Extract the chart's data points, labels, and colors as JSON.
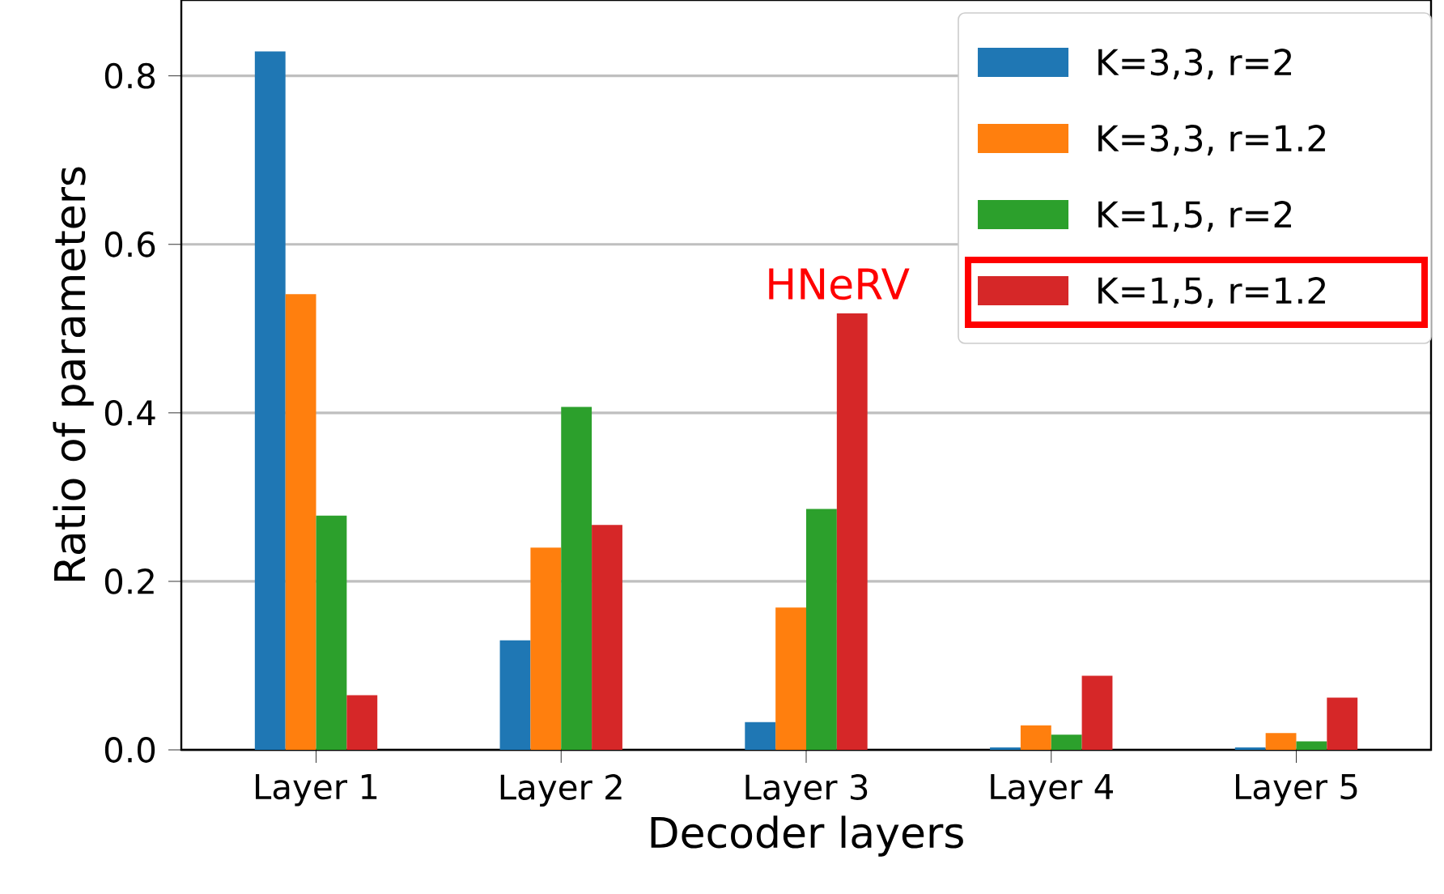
{
  "chart_data": {
    "type": "bar",
    "xlabel": "Decoder layers",
    "ylabel": "Ratio of parameters",
    "categories": [
      "Layer 1",
      "Layer 2",
      "Layer 3",
      "Layer 4",
      "Layer 5"
    ],
    "series": [
      {
        "name": "K=3,3, r=2",
        "color": "#1f77b4",
        "values": [
          0.829,
          0.13,
          0.033,
          0.003,
          0.003
        ]
      },
      {
        "name": "K=3,3, r=1.2",
        "color": "#ff7f0e",
        "values": [
          0.541,
          0.24,
          0.169,
          0.029,
          0.02
        ]
      },
      {
        "name": "K=1,5, r=2",
        "color": "#2ca02c",
        "values": [
          0.278,
          0.407,
          0.286,
          0.018,
          0.01
        ]
      },
      {
        "name": "K=1,5, r=1.2",
        "color": "#d62728",
        "values": [
          0.065,
          0.267,
          0.518,
          0.088,
          0.062
        ]
      }
    ],
    "ylim": [
      0,
      0.89
    ],
    "yticks": [
      {
        "value": 0,
        "label": "0.0"
      },
      0.2,
      0.4,
      0.6,
      0.8
    ],
    "grid": "y",
    "legend": "top right",
    "annotations": [
      "HNeRV"
    ]
  }
}
